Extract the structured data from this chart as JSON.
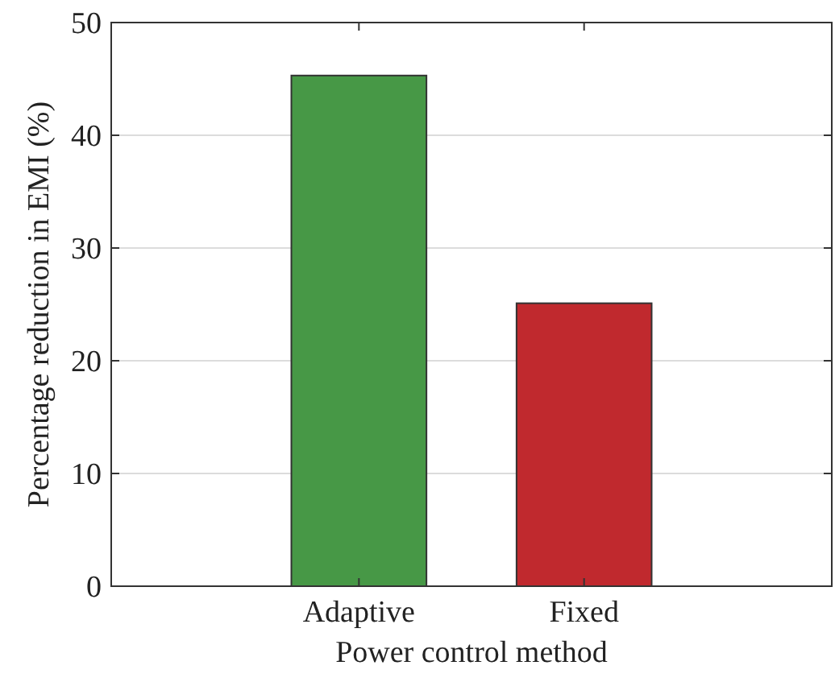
{
  "chart_data": {
    "type": "bar",
    "xlabel": "Power control method",
    "ylabel": "Percentage reduction in EMI (%)",
    "categories": [
      "Adaptive",
      "Fixed"
    ],
    "values": [
      45.3,
      25.1
    ],
    "colors": [
      "#479846",
      "#c0292e"
    ],
    "ylim": [
      0,
      50
    ],
    "yticks": [
      0,
      10,
      20,
      30,
      40,
      50
    ],
    "grid": "y"
  }
}
